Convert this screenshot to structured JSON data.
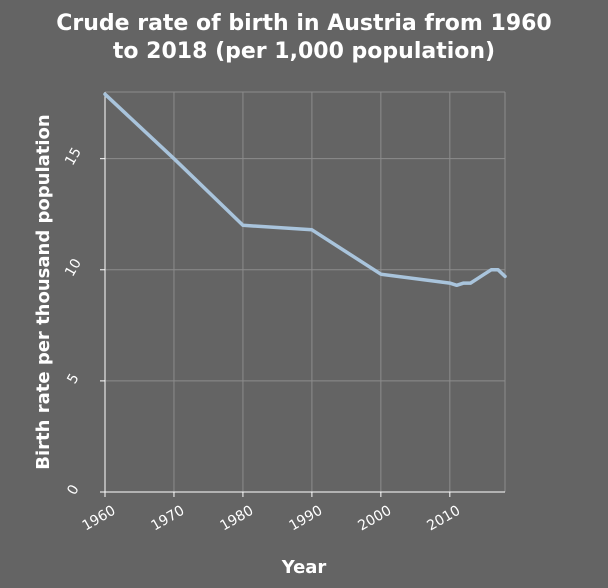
{
  "chart_data": {
    "type": "line",
    "title_lines": [
      "Crude rate of birth in Austria from 1960",
      "to 2018 (per 1,000 population)"
    ],
    "xlabel": "Year",
    "ylabel": "Birth rate per thousand population",
    "xlim": [
      1960,
      2018
    ],
    "ylim": [
      0,
      18
    ],
    "x_ticks": [
      1960,
      1970,
      1980,
      1990,
      2000,
      2010
    ],
    "y_ticks": [
      0,
      5,
      10,
      15
    ],
    "grid": true,
    "series": [
      {
        "color": "#a9c4dc",
        "points": [
          [
            1960,
            17.9
          ],
          [
            1970,
            15.0
          ],
          [
            1980,
            12.0
          ],
          [
            1990,
            11.8
          ],
          [
            2000,
            9.8
          ],
          [
            2010,
            9.4
          ],
          [
            2011,
            9.3
          ],
          [
            2012,
            9.4
          ],
          [
            2013,
            9.4
          ],
          [
            2014,
            9.6
          ],
          [
            2015,
            9.8
          ],
          [
            2016,
            10.0
          ],
          [
            2017,
            10.0
          ],
          [
            2018,
            9.7
          ]
        ]
      }
    ],
    "colors": {
      "background": "#646464",
      "grid": "#8c8c8c",
      "text": "#ffffff",
      "line": "#a9c4dc"
    }
  }
}
